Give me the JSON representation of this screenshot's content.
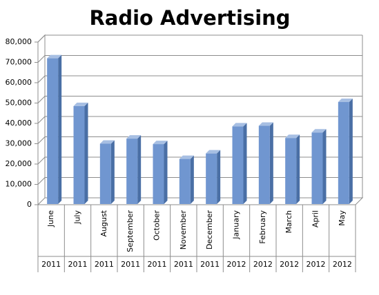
{
  "chart_data": {
    "type": "bar3d",
    "title": "Radio Advertising",
    "categories": [
      "June",
      "July",
      "August",
      "September",
      "October",
      "November",
      "December",
      "January",
      "February",
      "March",
      "April",
      "May"
    ],
    "years": [
      "2011",
      "2011",
      "2011",
      "2011",
      "2011",
      "2011",
      "2011",
      "2012",
      "2012",
      "2012",
      "2012",
      "2012"
    ],
    "values": [
      72000,
      48500,
      30000,
      32500,
      29800,
      22500,
      25200,
      38500,
      38800,
      32800,
      35500,
      50500
    ],
    "color": "#7096d0",
    "ylim": [
      0,
      80000
    ],
    "yticks": [
      0,
      {
        "value": 10000,
        "label": "10,000"
      },
      {
        "value": 20000,
        "label": "20,000"
      },
      {
        "value": 30000,
        "label": "30,000"
      },
      {
        "value": 40000,
        "label": "40,000"
      },
      {
        "value": 50000,
        "label": "50,000"
      },
      {
        "value": 60000,
        "label": "60,000"
      },
      {
        "value": 70000,
        "label": "70,000"
      },
      {
        "value": 80000,
        "label": "80,000"
      }
    ],
    "grid": true
  }
}
